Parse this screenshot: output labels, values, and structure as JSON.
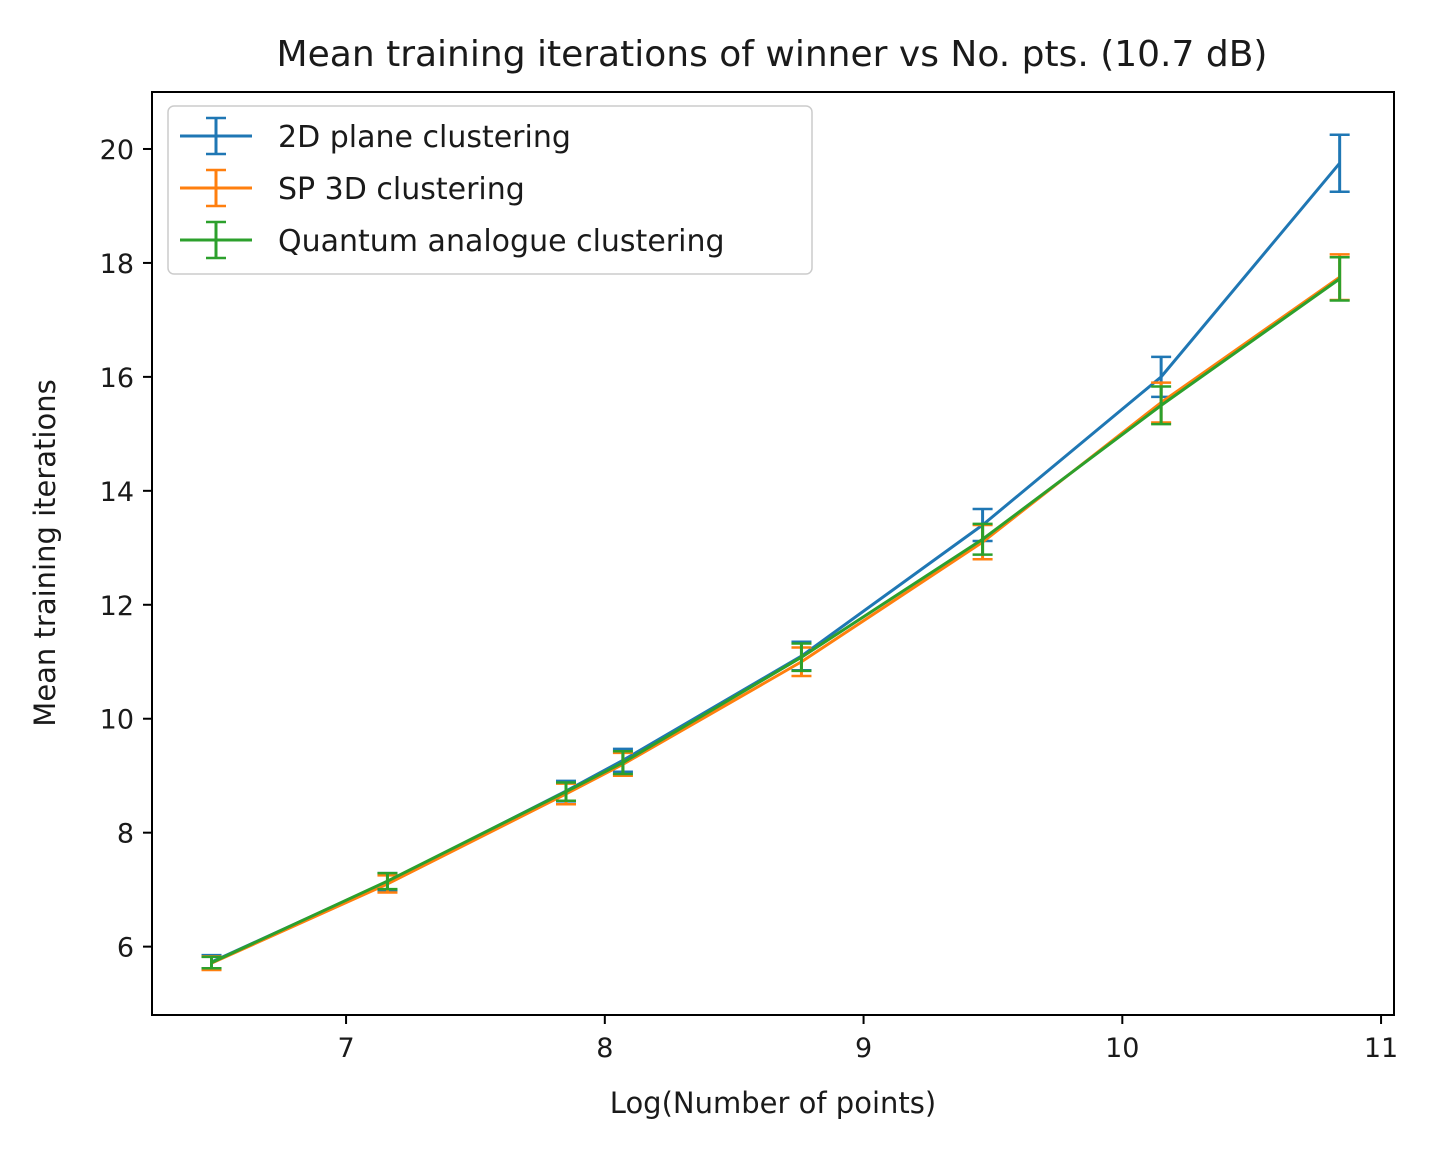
{
  "chart_data": {
    "type": "line",
    "title": "Mean training iterations of winner vs No. pts. (10.7 dB)",
    "xlabel": "Log(Number of points)",
    "ylabel": "Mean training iterations",
    "xlim": [
      6.25,
      11.05
    ],
    "ylim": [
      4.8,
      21.0
    ],
    "xticks": [
      7,
      8,
      9,
      10,
      11
    ],
    "yticks": [
      6,
      8,
      10,
      12,
      14,
      16,
      18,
      20
    ],
    "grid": false,
    "legend_position": "top-left",
    "error_bars": true,
    "series": [
      {
        "name": "2D plane clustering",
        "color": "#1f77b4",
        "x": [
          6.48,
          7.16,
          7.85,
          8.07,
          8.76,
          9.46,
          10.15,
          10.84
        ],
        "y": [
          5.73,
          7.14,
          8.73,
          9.27,
          11.1,
          13.4,
          16.0,
          19.75
        ],
        "err": [
          0.12,
          0.15,
          0.18,
          0.2,
          0.25,
          0.28,
          0.35,
          0.5
        ]
      },
      {
        "name": "SP 3D clustering",
        "color": "#ff7f0e",
        "x": [
          6.48,
          7.16,
          7.85,
          8.07,
          8.76,
          9.46,
          10.15,
          10.84
        ],
        "y": [
          5.71,
          7.1,
          8.68,
          9.2,
          11.0,
          13.1,
          15.55,
          17.75
        ],
        "err": [
          0.12,
          0.15,
          0.18,
          0.2,
          0.25,
          0.3,
          0.35,
          0.4
        ]
      },
      {
        "name": "Quantum analogue clustering",
        "color": "#2ca02c",
        "x": [
          6.48,
          7.16,
          7.85,
          8.07,
          8.76,
          9.46,
          10.15,
          10.84
        ],
        "y": [
          5.72,
          7.15,
          8.72,
          9.23,
          11.08,
          13.15,
          15.5,
          17.72
        ],
        "err": [
          0.1,
          0.14,
          0.16,
          0.2,
          0.24,
          0.27,
          0.33,
          0.38
        ]
      }
    ]
  }
}
